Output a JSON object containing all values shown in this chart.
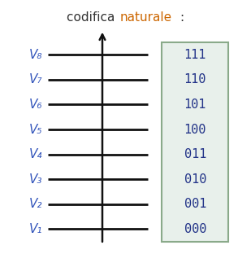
{
  "title_part1": "codifica ",
  "title_part2": "naturale",
  "title_part3": ":",
  "title_color1": "#cc6600",
  "title_color2": "#cc6600",
  "title_color_codifica": "#333333",
  "title_fontsize": 11,
  "labels": [
    "V₈",
    "V₇",
    "V₆",
    "V₅",
    "V₄",
    "V₃",
    "V₂",
    "V₁"
  ],
  "codes": [
    "111",
    "110",
    "101",
    "100",
    "011",
    "010",
    "001",
    "000"
  ],
  "label_color": "#3355bb",
  "code_color": "#223388",
  "bg_color": "#ffffff",
  "box_bg": "#e8f0eb",
  "box_edge": "#8aaa8a",
  "n_levels": 8,
  "axis_color": "#111111",
  "line_color": "#111111",
  "label_fontsize": 11,
  "code_fontsize": 11
}
